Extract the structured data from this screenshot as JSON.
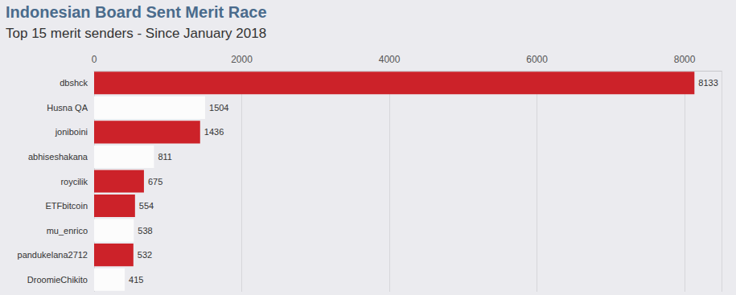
{
  "chart_data": {
    "type": "bar",
    "title": "Indonesian Board Sent Merit Race",
    "subtitle": "Top 15 merit senders - Since January 2018",
    "orientation": "horizontal",
    "categories": [
      "dbshck",
      "Husna QA",
      "joniboini",
      "abhiseshakana",
      "roycilik",
      "ETFbitcoin",
      "mu_enrico",
      "pandukelana2712",
      "DroomieChikito"
    ],
    "values": [
      8133,
      1504,
      1436,
      811,
      675,
      554,
      538,
      532,
      415
    ],
    "colors": [
      "#cc2229",
      "#fcfcfc",
      "#cc2229",
      "#fcfcfc",
      "#cc2229",
      "#cc2229",
      "#fcfcfc",
      "#cc2229",
      "#fcfcfc"
    ],
    "xlim": [
      0,
      8500
    ],
    "xticks": [
      0,
      2000,
      4000,
      6000,
      8000
    ],
    "grid": true,
    "data_labels": true
  }
}
